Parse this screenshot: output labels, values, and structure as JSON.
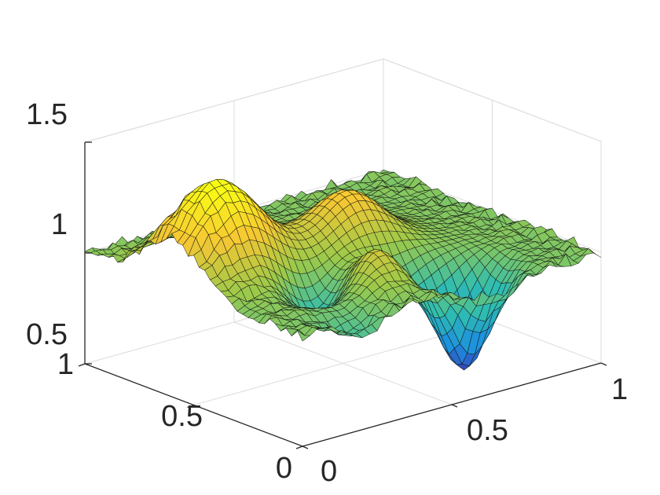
{
  "chart_data": {
    "type": "surface",
    "title": "",
    "xlabel": "",
    "ylabel": "",
    "zlabel": "",
    "xlim": [
      0,
      1
    ],
    "ylim": [
      0,
      1
    ],
    "zlim": [
      0.5,
      1.5
    ],
    "x_ticks": [
      "0",
      "0.5",
      "1"
    ],
    "y_ticks": [
      "0",
      "0.5",
      "1"
    ],
    "z_ticks": [
      "0.5",
      "1",
      "1.5"
    ],
    "grid": true,
    "colormap": "parula",
    "grid_resolution": 40,
    "baseline_z": 1.0,
    "features": [
      {
        "kind": "peak",
        "x": 0.15,
        "y": 0.6,
        "amplitude": 0.42,
        "width": 0.13
      },
      {
        "kind": "peak",
        "x": 0.55,
        "y": 0.55,
        "amplitude": 0.24,
        "width": 0.1
      },
      {
        "kind": "peak",
        "x": 0.4,
        "y": 0.25,
        "amplitude": 0.2,
        "width": 0.08
      },
      {
        "kind": "dip",
        "x": 0.65,
        "y": 0.15,
        "amplitude": -0.45,
        "width": 0.075
      },
      {
        "kind": "dip",
        "x": 0.3,
        "y": 0.32,
        "amplitude": -0.22,
        "width": 0.08
      },
      {
        "kind": "dip",
        "x": 0.55,
        "y": 0.3,
        "amplitude": -0.12,
        "width": 0.06
      },
      {
        "kind": "dip",
        "x": 0.2,
        "y": 0.05,
        "amplitude": -0.1,
        "width": 0.06
      }
    ],
    "colors": [
      "#3e26a8",
      "#1d8fdf",
      "#2fbdb0",
      "#9bc94a",
      "#f6c733",
      "#f9fb15"
    ]
  }
}
